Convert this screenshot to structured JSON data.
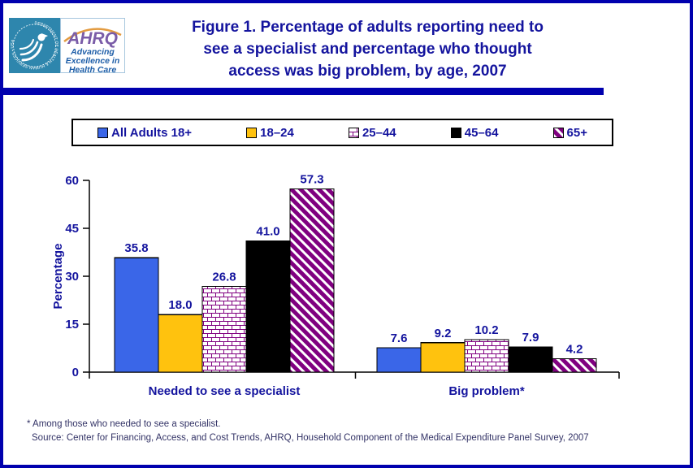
{
  "colors": {
    "accent_navy": "#14149E",
    "frame_blue": "#0000AE",
    "footnote_blue": "#333366",
    "bar_blue": "#3A66E8",
    "bar_yellow": "#FFC20E",
    "bar_black": "#000000",
    "pattern_purple": "#800080",
    "hhs_teal": "#2E86AD"
  },
  "header": {
    "title_lines": [
      "Figure 1. Percentage of adults reporting need to",
      "see a specialist and percentage who thought",
      "access was big problem, by age, 2007"
    ],
    "logo": {
      "hhs_ring_text": "DEPARTMENT OF HEALTH & HUMAN SERVICES • USA",
      "ahrq_acronym": "AHRQ",
      "tagline_lines": [
        "Advancing",
        "Excellence in",
        "Health Care"
      ]
    }
  },
  "legend": {
    "items": [
      {
        "label": "All Adults 18+",
        "swatch": "blue-solid"
      },
      {
        "label": "18–24",
        "swatch": "yellow-solid"
      },
      {
        "label": "25–44",
        "swatch": "brick-pattern"
      },
      {
        "label": "45–64",
        "swatch": "black-solid"
      },
      {
        "label": "65+",
        "swatch": "diagonal-hatch"
      }
    ]
  },
  "chart_data": {
    "type": "bar",
    "title": "",
    "ylabel": "Percentage",
    "xlabel": "",
    "ylim": [
      0,
      60
    ],
    "yticks": [
      0,
      15,
      30,
      45,
      60
    ],
    "grid": false,
    "legend_position": "top",
    "categories": [
      "Needed to see a specialist",
      "Big problem*"
    ],
    "series": [
      {
        "name": "All Adults 18+",
        "color": "#3A66E8",
        "pattern": "solid",
        "values": [
          35.8,
          7.6
        ]
      },
      {
        "name": "18–24",
        "color": "#FFC20E",
        "pattern": "solid",
        "values": [
          18.0,
          9.2
        ]
      },
      {
        "name": "25–44",
        "color": "#800080",
        "pattern": "brick",
        "values": [
          26.8,
          10.2
        ]
      },
      {
        "name": "45–64",
        "color": "#000000",
        "pattern": "solid",
        "values": [
          41.0,
          7.9
        ]
      },
      {
        "name": "65+",
        "color": "#800080",
        "pattern": "hatch",
        "values": [
          57.3,
          4.2
        ]
      }
    ],
    "value_labels": true
  },
  "footnotes": {
    "line1": "* Among those who needed to see a specialist.",
    "line2": "Source: Center for Financing, Access, and Cost Trends, AHRQ, Household Component of the Medical Expenditure Panel Survey, 2007"
  }
}
